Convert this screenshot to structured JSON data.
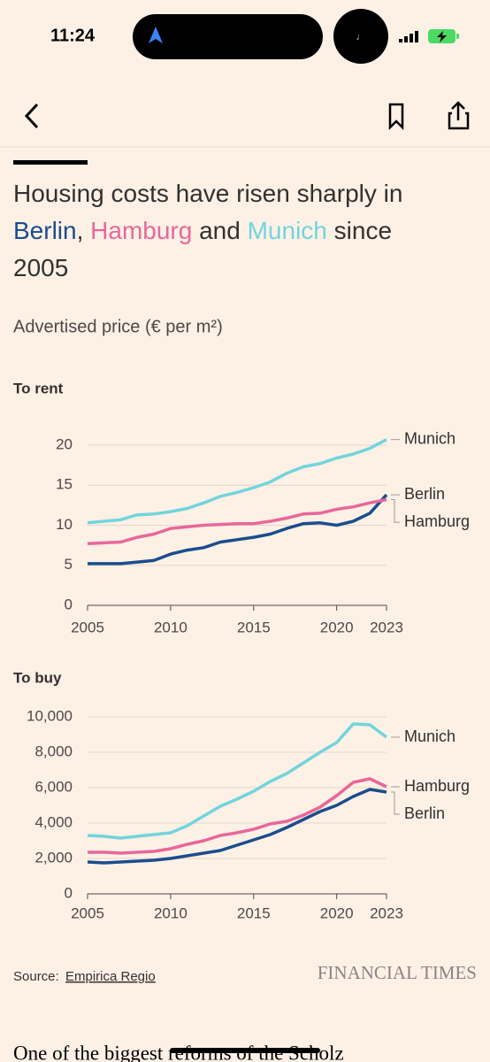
{
  "status_bar": {
    "time": "11:24"
  },
  "headline": {
    "segments": [
      "Housing costs have risen sharply in ",
      "Berlin",
      ", ",
      "Hamburg",
      " and ",
      "Munich",
      " since 2005"
    ]
  },
  "subtitle": "Advertised price (€ per m²)",
  "chart_data": [
    {
      "type": "line",
      "title": "To rent",
      "x": [
        2005,
        2006,
        2007,
        2008,
        2009,
        2010,
        2011,
        2012,
        2013,
        2014,
        2015,
        2016,
        2017,
        2018,
        2019,
        2020,
        2021,
        2022,
        2023
      ],
      "xlim": [
        2005,
        2023
      ],
      "xticks": [
        2005,
        2010,
        2015,
        2020,
        2023
      ],
      "ylim": [
        0,
        20
      ],
      "yticks": [
        0,
        5,
        10,
        15,
        20
      ],
      "series": [
        {
          "name": "Munich",
          "color": "#72d4dd",
          "values": [
            10.3,
            10.5,
            10.7,
            11.3,
            11.4,
            11.7,
            12.1,
            12.8,
            13.6,
            14.1,
            14.7,
            15.4,
            16.5,
            17.3,
            17.7,
            18.4,
            18.9,
            19.6,
            20.7
          ]
        },
        {
          "name": "Berlin",
          "color": "#1a4d8c",
          "values": [
            5.2,
            5.2,
            5.2,
            5.4,
            5.6,
            6.4,
            6.9,
            7.2,
            7.9,
            8.2,
            8.5,
            8.9,
            9.6,
            10.2,
            10.3,
            10.0,
            10.5,
            11.5,
            13.8
          ]
        },
        {
          "name": "Hamburg",
          "color": "#e8679a",
          "values": [
            7.7,
            7.8,
            7.9,
            8.5,
            8.9,
            9.6,
            9.8,
            10.0,
            10.1,
            10.2,
            10.2,
            10.5,
            10.9,
            11.4,
            11.5,
            12.0,
            12.3,
            12.8,
            13.2
          ]
        }
      ]
    },
    {
      "type": "line",
      "title": "To buy",
      "x": [
        2005,
        2006,
        2007,
        2008,
        2009,
        2010,
        2011,
        2012,
        2013,
        2014,
        2015,
        2016,
        2017,
        2018,
        2019,
        2020,
        2021,
        2022,
        2023
      ],
      "xlim": [
        2005,
        2023
      ],
      "xticks": [
        2005,
        2010,
        2015,
        2020,
        2023
      ],
      "ylim": [
        0,
        10000
      ],
      "yticks": [
        0,
        {
          "value": 2000,
          "label": "2,000"
        },
        {
          "value": 4000,
          "label": "4,000"
        },
        {
          "value": 6000,
          "label": "6,000"
        },
        {
          "value": 8000,
          "label": "8,000"
        },
        {
          "value": 10000,
          "label": "10,000"
        }
      ],
      "series": [
        {
          "name": "Munich",
          "color": "#72d4dd",
          "values": [
            3300,
            3250,
            3150,
            3250,
            3350,
            3450,
            3850,
            4400,
            4950,
            5350,
            5800,
            6350,
            6800,
            7400,
            8000,
            8550,
            9600,
            9550,
            8850
          ]
        },
        {
          "name": "Hamburg",
          "color": "#e8679a",
          "values": [
            2350,
            2350,
            2300,
            2350,
            2400,
            2550,
            2800,
            3000,
            3300,
            3450,
            3650,
            3950,
            4100,
            4450,
            4900,
            5550,
            6300,
            6500,
            6050
          ]
        },
        {
          "name": "Berlin",
          "color": "#1a4d8c",
          "values": [
            1800,
            1750,
            1800,
            1850,
            1900,
            2000,
            2150,
            2300,
            2450,
            2750,
            3050,
            3350,
            3750,
            4200,
            4650,
            5000,
            5500,
            5900,
            5750
          ]
        }
      ]
    }
  ],
  "source": {
    "label": "Source:",
    "link": "Empirica Regio"
  },
  "brand": "FINANCIAL TIMES",
  "body_text": "One of the biggest reforms of the Scholz"
}
